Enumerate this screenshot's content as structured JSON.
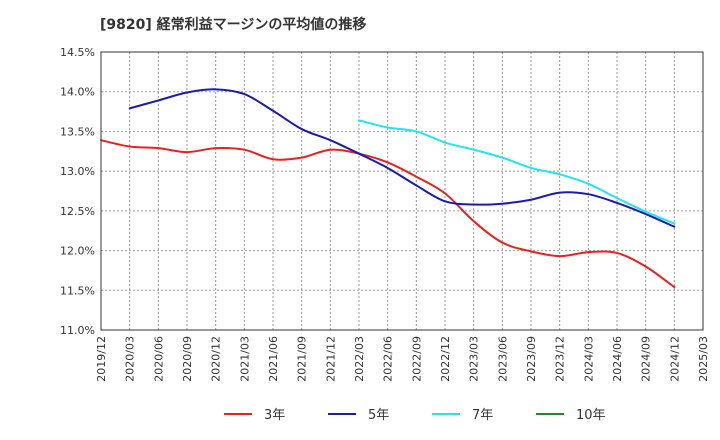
{
  "chart_data": {
    "type": "line",
    "title": "[9820]  経常利益マージンの平均値の推移",
    "xlabel": "",
    "ylabel": "",
    "ylim": [
      11.0,
      14.5
    ],
    "grid": true,
    "legend_position": "bottom",
    "y_ticks": [
      "11.0%",
      "11.5%",
      "12.0%",
      "12.5%",
      "13.0%",
      "13.5%",
      "14.0%",
      "14.5%"
    ],
    "x_ticks": [
      "2019/12",
      "2020/03",
      "2020/06",
      "2020/09",
      "2020/12",
      "2021/03",
      "2021/06",
      "2021/09",
      "2021/12",
      "2022/03",
      "2022/06",
      "2022/09",
      "2022/12",
      "2023/03",
      "2023/06",
      "2023/09",
      "2023/12",
      "2024/03",
      "2024/06",
      "2024/09",
      "2024/12",
      "2025/03"
    ],
    "series": [
      {
        "name": "3年",
        "color": "#e8221c",
        "points": [
          [
            "2019/12",
            13.39
          ],
          [
            "2020/03",
            13.31
          ],
          [
            "2020/06",
            13.29
          ],
          [
            "2020/09",
            13.24
          ],
          [
            "2020/12",
            13.29
          ],
          [
            "2021/03",
            13.27
          ],
          [
            "2021/06",
            13.15
          ],
          [
            "2021/09",
            13.17
          ],
          [
            "2021/12",
            13.27
          ],
          [
            "2022/03",
            13.22
          ],
          [
            "2022/06",
            13.11
          ],
          [
            "2022/09",
            12.93
          ],
          [
            "2022/12",
            12.72
          ],
          [
            "2023/03",
            12.37
          ],
          [
            "2023/06",
            12.1
          ],
          [
            "2023/09",
            11.99
          ],
          [
            "2023/12",
            11.93
          ],
          [
            "2024/03",
            11.98
          ],
          [
            "2024/06",
            11.97
          ],
          [
            "2024/09",
            11.8
          ],
          [
            "2024/12",
            11.54
          ]
        ]
      },
      {
        "name": "5年",
        "color": "#1b1bb3",
        "points": [
          [
            "2020/03",
            13.79
          ],
          [
            "2020/06",
            13.89
          ],
          [
            "2020/09",
            13.99
          ],
          [
            "2020/12",
            14.03
          ],
          [
            "2021/03",
            13.97
          ],
          [
            "2021/06",
            13.76
          ],
          [
            "2021/09",
            13.53
          ],
          [
            "2021/12",
            13.39
          ],
          [
            "2022/03",
            13.22
          ],
          [
            "2022/06",
            13.04
          ],
          [
            "2022/09",
            12.82
          ],
          [
            "2022/12",
            12.62
          ],
          [
            "2023/03",
            12.58
          ],
          [
            "2023/06",
            12.59
          ],
          [
            "2023/09",
            12.64
          ],
          [
            "2023/12",
            12.73
          ],
          [
            "2024/03",
            12.71
          ],
          [
            "2024/06",
            12.6
          ],
          [
            "2024/09",
            12.46
          ],
          [
            "2024/12",
            12.3
          ]
        ]
      },
      {
        "name": "7年",
        "color": "#22e5ef",
        "points": [
          [
            "2022/03",
            13.64
          ],
          [
            "2022/06",
            13.55
          ],
          [
            "2022/09",
            13.5
          ],
          [
            "2022/12",
            13.36
          ],
          [
            "2023/03",
            13.27
          ],
          [
            "2023/06",
            13.17
          ],
          [
            "2023/09",
            13.04
          ],
          [
            "2023/12",
            12.96
          ],
          [
            "2024/03",
            12.84
          ],
          [
            "2024/06",
            12.66
          ],
          [
            "2024/09",
            12.49
          ],
          [
            "2024/12",
            12.34
          ]
        ]
      },
      {
        "name": "10年",
        "color": "#1e8c1e",
        "points": []
      }
    ]
  }
}
